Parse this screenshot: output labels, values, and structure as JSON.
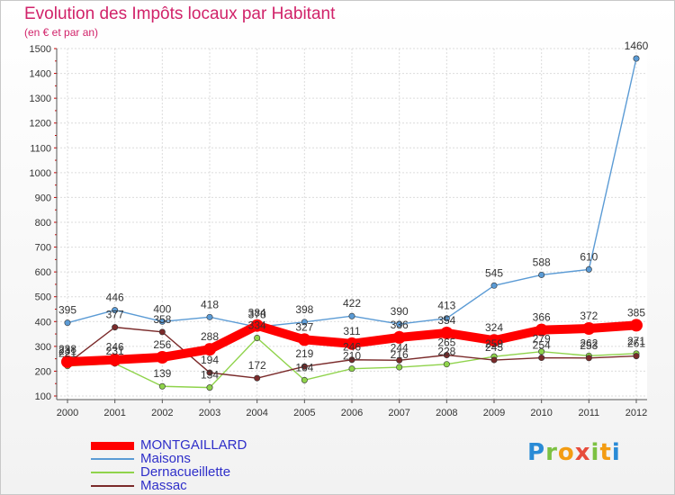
{
  "title": "Evolution des Impôts locaux par Habitant",
  "subtitle": "(en € et par an)",
  "logo": [
    "P",
    "r",
    "o",
    "x",
    "i",
    "t",
    "i"
  ],
  "logo_colors": [
    "#2a8bd6",
    "#7cc142",
    "#f39c12",
    "#e74c3c",
    "#7cc142",
    "#f39c12",
    "#2a8bd6"
  ],
  "chart_data": {
    "type": "line",
    "x": [
      "2000",
      "2001",
      "2002",
      "2003",
      "2004",
      "2005",
      "2006",
      "2007",
      "2008",
      "2009",
      "2010",
      "2011",
      "2012"
    ],
    "ylim": [
      100,
      1500
    ],
    "yticks": [
      100,
      200,
      300,
      400,
      500,
      600,
      700,
      800,
      900,
      1000,
      1100,
      1200,
      1300,
      1400,
      1500
    ],
    "grid": true,
    "legend_position": "bottom-left",
    "series": [
      {
        "name": "MONTGAILLARD",
        "color": "#ff0000",
        "values": [
          238,
          246,
          256,
          288,
          384,
          327,
          311,
          336,
          354,
          324,
          366,
          372,
          385
        ]
      },
      {
        "name": "Maisons",
        "color": "#5b9bd5",
        "values": [
          395,
          446,
          400,
          418,
          378,
          398,
          422,
          390,
          413,
          545,
          588,
          610,
          1460
        ]
      },
      {
        "name": "Dernacueillette",
        "color": "#8fd34b",
        "values": [
          221,
          231,
          139,
          134,
          334,
          164,
          210,
          216,
          228,
          259,
          279,
          262,
          271
        ]
      },
      {
        "name": "Massac",
        "color": "#7a2a2a",
        "values": [
          231,
          377,
          358,
          194,
          172,
          219,
          246,
          244,
          265,
          245,
          254,
          253,
          261
        ]
      }
    ]
  }
}
